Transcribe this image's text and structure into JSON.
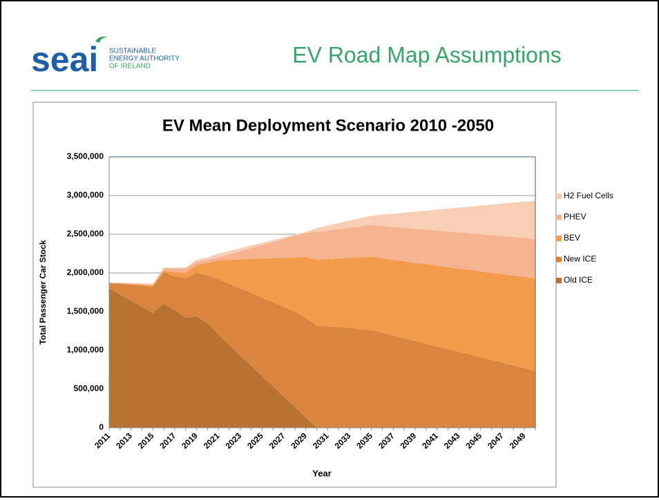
{
  "slide": {
    "logo": "seai",
    "logo_lines": [
      "SUSTAINABLE",
      "ENERGY AUTHORITY",
      "OF IRELAND"
    ],
    "title": "EV Road Map Assumptions"
  },
  "chart_data": {
    "type": "stacked_area",
    "title": "EV Mean Deployment Scenario 2010 -2050",
    "x_label": "Year",
    "y_label": "Total Passenger Car Stock",
    "categories": [
      "2011",
      null,
      "2013",
      null,
      "2015",
      null,
      "2017",
      null,
      "2019",
      null,
      "2021",
      null,
      "2023",
      null,
      "2025",
      null,
      "2027",
      null,
      "2029",
      null,
      "2031",
      null,
      "2033",
      null,
      "2035",
      null,
      "2037",
      null,
      "2039",
      null,
      "2041",
      null,
      "2043",
      null,
      "2045",
      null,
      "2047",
      null,
      "2049",
      null
    ],
    "ylim": [
      0,
      3500000
    ],
    "yticks": [
      0,
      {
        "value": 500000,
        "label": "500,000"
      },
      {
        "value": 1000000,
        "label": "1,000,000"
      },
      {
        "value": 1500000,
        "label": "1,500,000"
      },
      {
        "value": 2000000,
        "label": "2,000,000"
      },
      {
        "value": 2500000,
        "label": "2,500,000"
      },
      {
        "value": 3000000,
        "label": "3,000,000"
      },
      {
        "value": 3500000,
        "label": "3,500,000"
      }
    ],
    "grid": true,
    "legend": "right",
    "series": [
      {
        "name": "Old ICE",
        "color": "#b87333",
        "values": [
          1800000,
          1720000,
          1640000,
          1560000,
          1480000,
          1600000,
          1520000,
          1420000,
          1440000,
          1350000,
          1200000,
          1067000,
          933000,
          800000,
          667000,
          533000,
          400000,
          267000,
          133000,
          0,
          0,
          0,
          0,
          0,
          0,
          0,
          0,
          0,
          0,
          0,
          0,
          0,
          0,
          0,
          0,
          0,
          0,
          0,
          0,
          0
        ]
      },
      {
        "name": "New ICE",
        "color": "#d9853f",
        "values": [
          70000,
          140000,
          210000,
          275000,
          340000,
          410000,
          440000,
          510000,
          560000,
          620000,
          720000,
          793000,
          867000,
          940000,
          1013000,
          1087000,
          1160000,
          1233000,
          1287000,
          1320000,
          1310000,
          1300000,
          1290000,
          1275000,
          1260000,
          1225000,
          1190000,
          1155000,
          1120000,
          1085000,
          1050000,
          1015000,
          980000,
          945000,
          910000,
          875000,
          840000,
          805000,
          770000,
          730000
        ]
      },
      {
        "name": "BEV",
        "color": "#f39a4b",
        "values": [
          2000,
          5000,
          8000,
          13000,
          15000,
          20000,
          50000,
          70000,
          100000,
          160000,
          240000,
          310000,
          375000,
          440000,
          505000,
          570000,
          635000,
          700000,
          785000,
          850000,
          868000,
          886000,
          904000,
          927000,
          950000,
          965000,
          980000,
          995000,
          1010000,
          1030000,
          1045000,
          1060000,
          1075000,
          1095000,
          1110000,
          1125000,
          1145000,
          1160000,
          1180000,
          1200000
        ]
      },
      {
        "name": "PHEV",
        "color": "#f5b48f",
        "values": [
          3000,
          5000,
          7000,
          10000,
          15000,
          30000,
          50000,
          60000,
          40000,
          40000,
          40000,
          70000,
          105000,
          140000,
          175000,
          210000,
          245000,
          280000,
          315000,
          360000,
          370000,
          380000,
          390000,
          400000,
          410000,
          418000,
          426000,
          434000,
          442000,
          445000,
          453000,
          461000,
          469000,
          472000,
          480000,
          488000,
          491000,
          499000,
          502000,
          510000
        ]
      },
      {
        "name": "H2 Fuel Cells",
        "color": "#f8cfb4",
        "values": [
          3000,
          5000,
          5000,
          7000,
          10000,
          10000,
          10000,
          10000,
          30000,
          30000,
          50000,
          45000,
          40000,
          35000,
          30000,
          25000,
          20000,
          15000,
          10000,
          50000,
          64000,
          78000,
          92000,
          106000,
          120000,
          145000,
          170000,
          195000,
          220000,
          245000,
          270000,
          295000,
          320000,
          345000,
          370000,
          395000,
          420000,
          445000,
          470000,
          490000
        ]
      }
    ]
  }
}
